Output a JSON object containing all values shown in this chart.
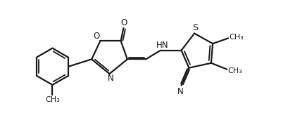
{
  "bg_color": "#ffffff",
  "line_color": "#1a1a1a",
  "line_width": 1.6,
  "figsize": [
    4.1,
    1.78
  ],
  "dpi": 100,
  "xlim": [
    0,
    10.5
  ],
  "ylim": [
    0,
    4.6
  ]
}
